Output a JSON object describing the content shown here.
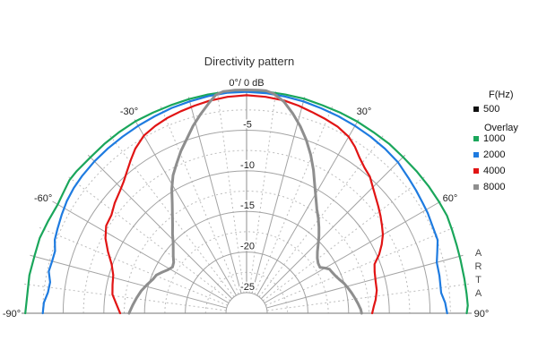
{
  "title": "Directivity pattern",
  "watermark": "ARTA",
  "legend": {
    "freq_header": "F(Hz)",
    "current": {
      "label": "500",
      "color": "#111111"
    },
    "overlay_header": "Overlay",
    "overlays": [
      {
        "label": "1000",
        "color": "#1aa65b"
      },
      {
        "label": "2000",
        "color": "#1e7be0"
      },
      {
        "label": "4000",
        "color": "#e11414"
      },
      {
        "label": "8000",
        "color": "#8e8e8e"
      }
    ]
  },
  "chart_data": {
    "type": "polar-directivity",
    "title": "Directivity pattern",
    "units": {
      "angle": "deg",
      "value": "dB"
    },
    "angle_range": [
      -90,
      90
    ],
    "value_range": [
      0,
      -25
    ],
    "legend_position": "right",
    "apex_label": "0°/ 0 dB",
    "angle_labels": [
      {
        "angle": -90,
        "text": "-90°"
      },
      {
        "angle": -60,
        "text": "-60°"
      },
      {
        "angle": -30,
        "text": "-30°"
      },
      {
        "angle": 30,
        "text": "30°"
      },
      {
        "angle": 60,
        "text": "60°"
      },
      {
        "angle": 90,
        "text": "90°"
      }
    ],
    "ring_labels": [
      {
        "db": -5,
        "text": "-5"
      },
      {
        "db": -10,
        "text": "-10"
      },
      {
        "db": -15,
        "text": "-15"
      },
      {
        "db": -20,
        "text": "-20"
      },
      {
        "db": -25,
        "text": "-25"
      }
    ],
    "grid": {
      "solid_rings_db": [
        -5,
        -10,
        -15,
        -20,
        -25
      ],
      "dashed_rings_db": [
        -2.5,
        -7.5,
        -12.5,
        -17.5,
        -22.5
      ],
      "solid_spokes_deg": [
        -75,
        -60,
        -45,
        -30,
        -15,
        15,
        30,
        45,
        60,
        75
      ],
      "dashed_spokes_deg": [
        -82.5,
        -67.5,
        -52.5,
        -37.5,
        -22.5,
        -7.5,
        7.5,
        22.5,
        37.5,
        52.5,
        67.5,
        82.5
      ],
      "solid_color": "#a3a3a3",
      "dashed_color": "#bdbdbd",
      "axis_color": "#8f8f8f"
    },
    "series": [
      {
        "name": "500",
        "color": "#111111",
        "width": 2,
        "visible": false,
        "points": []
      },
      {
        "name": "1000",
        "color": "#1aa65b",
        "width": 2.2,
        "visible": true,
        "points": [
          [
            -90,
            -0.35
          ],
          [
            -85,
            -0.5
          ],
          [
            -80,
            -0.45
          ],
          [
            -75,
            -0.55
          ],
          [
            -70,
            -0.5
          ],
          [
            -65,
            -0.65
          ],
          [
            -60,
            -0.75
          ],
          [
            -57,
            -0.6
          ],
          [
            -53,
            -0.3
          ],
          [
            -50,
            -0.3
          ],
          [
            -45,
            -0.4
          ],
          [
            -40,
            -0.35
          ],
          [
            -35,
            -0.3
          ],
          [
            -30,
            -0.25
          ],
          [
            -25,
            -0.3
          ],
          [
            -20,
            -0.3
          ],
          [
            -15,
            -0.25
          ],
          [
            -10,
            -0.2
          ],
          [
            -5,
            -0.15
          ],
          [
            0,
            -0.15
          ],
          [
            5,
            -0.15
          ],
          [
            10,
            -0.2
          ],
          [
            15,
            -0.2
          ],
          [
            20,
            -0.3
          ],
          [
            25,
            -0.3
          ],
          [
            30,
            -0.3
          ],
          [
            35,
            -0.35
          ],
          [
            40,
            -0.3
          ],
          [
            45,
            -0.35
          ],
          [
            50,
            -0.3
          ],
          [
            55,
            -0.25
          ],
          [
            60,
            -0.2
          ],
          [
            64,
            -0.15
          ],
          [
            68,
            -0.3
          ],
          [
            72,
            -0.4
          ],
          [
            76,
            -0.45
          ],
          [
            81,
            -0.45
          ],
          [
            85,
            -0.4
          ],
          [
            88,
            -0.35
          ],
          [
            90,
            -0.5
          ]
        ]
      },
      {
        "name": "2000",
        "color": "#1e7be0",
        "width": 2.2,
        "visible": true,
        "points": [
          [
            -90,
            -2.5
          ],
          [
            -87,
            -2.6
          ],
          [
            -84,
            -3.0
          ],
          [
            -81,
            -3.1
          ],
          [
            -78,
            -2.7
          ],
          [
            -75,
            -2.8
          ],
          [
            -72,
            -2.8
          ],
          [
            -69,
            -2.3
          ],
          [
            -66,
            -2.1
          ],
          [
            -62,
            -1.8
          ],
          [
            -58,
            -1.5
          ],
          [
            -54,
            -1.3
          ],
          [
            -50,
            -1.2
          ],
          [
            -45,
            -1.1
          ],
          [
            -40,
            -1.05
          ],
          [
            -35,
            -1.0
          ],
          [
            -30,
            -0.9
          ],
          [
            -25,
            -0.8
          ],
          [
            -20,
            -0.65
          ],
          [
            -15,
            -0.55
          ],
          [
            -10,
            -0.4
          ],
          [
            -5,
            -0.3
          ],
          [
            0,
            -0.3
          ],
          [
            5,
            -0.35
          ],
          [
            10,
            -0.45
          ],
          [
            15,
            -0.55
          ],
          [
            20,
            -0.7
          ],
          [
            25,
            -0.8
          ],
          [
            30,
            -0.9
          ],
          [
            35,
            -1.0
          ],
          [
            40,
            -1.1
          ],
          [
            45,
            -1.25
          ],
          [
            50,
            -1.6
          ],
          [
            54,
            -1.8
          ],
          [
            58,
            -2.0
          ],
          [
            61,
            -2.1
          ],
          [
            65,
            -2.3
          ],
          [
            69,
            -2.4
          ],
          [
            72,
            -2.9
          ],
          [
            75,
            -3.35
          ],
          [
            79,
            -3.4
          ],
          [
            84,
            -3.5
          ],
          [
            87,
            -3.1
          ],
          [
            90,
            -2.9
          ]
        ]
      },
      {
        "name": "4000",
        "color": "#e11414",
        "width": 2.2,
        "visible": true,
        "points": [
          [
            -90,
            -12.0
          ],
          [
            -86,
            -11.5
          ],
          [
            -82,
            -10.9
          ],
          [
            -78,
            -10.7
          ],
          [
            -74,
            -10.5
          ],
          [
            -70,
            -9.9
          ],
          [
            -66,
            -8.9
          ],
          [
            -62,
            -7.9
          ],
          [
            -58,
            -7.2
          ],
          [
            -54,
            -7.0
          ],
          [
            -50,
            -6.4
          ],
          [
            -46,
            -5.9
          ],
          [
            -43,
            -5.4
          ],
          [
            -40,
            -4.7
          ],
          [
            -37,
            -3.9
          ],
          [
            -34,
            -3.1
          ],
          [
            -30,
            -2.3
          ],
          [
            -26,
            -1.9
          ],
          [
            -22,
            -1.6
          ],
          [
            -18,
            -1.4
          ],
          [
            -14,
            -1.2
          ],
          [
            -10,
            -1.0
          ],
          [
            -5,
            -0.8
          ],
          [
            0,
            -0.7
          ],
          [
            5,
            -0.8
          ],
          [
            10,
            -0.95
          ],
          [
            14,
            -1.2
          ],
          [
            18,
            -1.5
          ],
          [
            22,
            -1.75
          ],
          [
            26,
            -2.0
          ],
          [
            30,
            -2.45
          ],
          [
            33,
            -3.1
          ],
          [
            36,
            -3.9
          ],
          [
            39,
            -4.5
          ],
          [
            42,
            -4.9
          ],
          [
            45,
            -5.6
          ],
          [
            48,
            -6.2
          ],
          [
            51,
            -6.7
          ],
          [
            54,
            -7.2
          ],
          [
            57,
            -7.7
          ],
          [
            60,
            -8.2
          ],
          [
            63,
            -8.9
          ],
          [
            66,
            -9.7
          ],
          [
            69,
            -10.7
          ],
          [
            72,
            -11.0
          ],
          [
            76,
            -11.2
          ],
          [
            80,
            -11.3
          ],
          [
            84,
            -11.6
          ],
          [
            87,
            -11.9
          ],
          [
            90,
            -12.1
          ]
        ]
      },
      {
        "name": "8000",
        "color": "#8e8e8e",
        "width": 3,
        "visible": true,
        "points": [
          [
            -90,
            -13.1
          ],
          [
            -86,
            -13.5
          ],
          [
            -82,
            -13.9
          ],
          [
            -78,
            -14.3
          ],
          [
            -74,
            -14.8
          ],
          [
            -70,
            -15.3
          ],
          [
            -67,
            -15.5
          ],
          [
            -64,
            -16.0
          ],
          [
            -61,
            -16.5
          ],
          [
            -58,
            -16.8
          ],
          [
            -55,
            -16.6
          ],
          [
            -52,
            -16.1
          ],
          [
            -49,
            -15.6
          ],
          [
            -46,
            -15.0
          ],
          [
            -43,
            -14.2
          ],
          [
            -40,
            -13.4
          ],
          [
            -37,
            -12.4
          ],
          [
            -34,
            -11.2
          ],
          [
            -31,
            -9.7
          ],
          [
            -28,
            -8.3
          ],
          [
            -25,
            -7.2
          ],
          [
            -22,
            -6.0
          ],
          [
            -19,
            -4.9
          ],
          [
            -16,
            -3.6
          ],
          [
            -13,
            -2.4
          ],
          [
            -10,
            -1.2
          ],
          [
            -8,
            -0.4
          ],
          [
            -6,
            -0.1
          ],
          [
            -3,
            -0.05
          ],
          [
            0,
            -0.05
          ],
          [
            3,
            -0.05
          ],
          [
            5,
            -0.05
          ],
          [
            7,
            -0.3
          ],
          [
            10,
            -1.1
          ],
          [
            13,
            -2.3
          ],
          [
            16,
            -3.6
          ],
          [
            19,
            -5.0
          ],
          [
            22,
            -6.5
          ],
          [
            25,
            -8.1
          ],
          [
            28,
            -9.7
          ],
          [
            31,
            -11.0
          ],
          [
            34,
            -12.1
          ],
          [
            37,
            -12.9
          ],
          [
            40,
            -13.7
          ],
          [
            43,
            -14.5
          ],
          [
            46,
            -15.3
          ],
          [
            49,
            -16.0
          ],
          [
            52,
            -16.5
          ],
          [
            55,
            -16.8
          ],
          [
            58,
            -16.9
          ],
          [
            60,
            -16.4
          ],
          [
            62,
            -16.0
          ],
          [
            64,
            -15.9
          ],
          [
            67,
            -15.7
          ],
          [
            70,
            -15.4
          ],
          [
            73,
            -15.0
          ],
          [
            76,
            -14.7
          ],
          [
            79,
            -14.4
          ],
          [
            82,
            -14.1
          ],
          [
            85,
            -13.8
          ],
          [
            88,
            -13.5
          ],
          [
            90,
            -13.4
          ]
        ]
      }
    ]
  }
}
